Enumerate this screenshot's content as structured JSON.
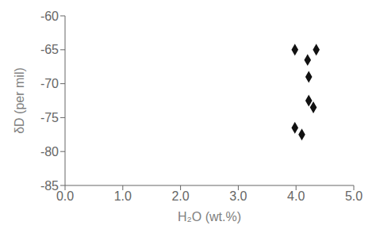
{
  "chart_data": {
    "type": "scatter",
    "x": [
      3.98,
      4.2,
      4.35,
      4.22,
      4.22,
      4.3,
      3.98,
      4.1
    ],
    "values": [
      -65.0,
      -66.5,
      -65.0,
      -69.0,
      -72.5,
      -73.5,
      -76.5,
      -77.5
    ],
    "xlabel": "H₂O (wt.%)",
    "ylabel": "δD (per mil)",
    "xlim": [
      0.0,
      5.0
    ],
    "ylim": [
      -85,
      -60
    ],
    "xticks": [
      {
        "value": 0.0,
        "label": "0.0"
      },
      {
        "value": 1.0,
        "label": "1.0"
      },
      {
        "value": 2.0,
        "label": "2.0"
      },
      {
        "value": 3.0,
        "label": "3.0"
      },
      {
        "value": 4.0,
        "label": "4.0"
      },
      {
        "value": 5.0,
        "label": "5.0"
      }
    ],
    "yticks": [
      -85,
      -80,
      -75,
      -70,
      -65,
      -60
    ],
    "color": "#111111",
    "marker": "diamond",
    "grid": false
  }
}
